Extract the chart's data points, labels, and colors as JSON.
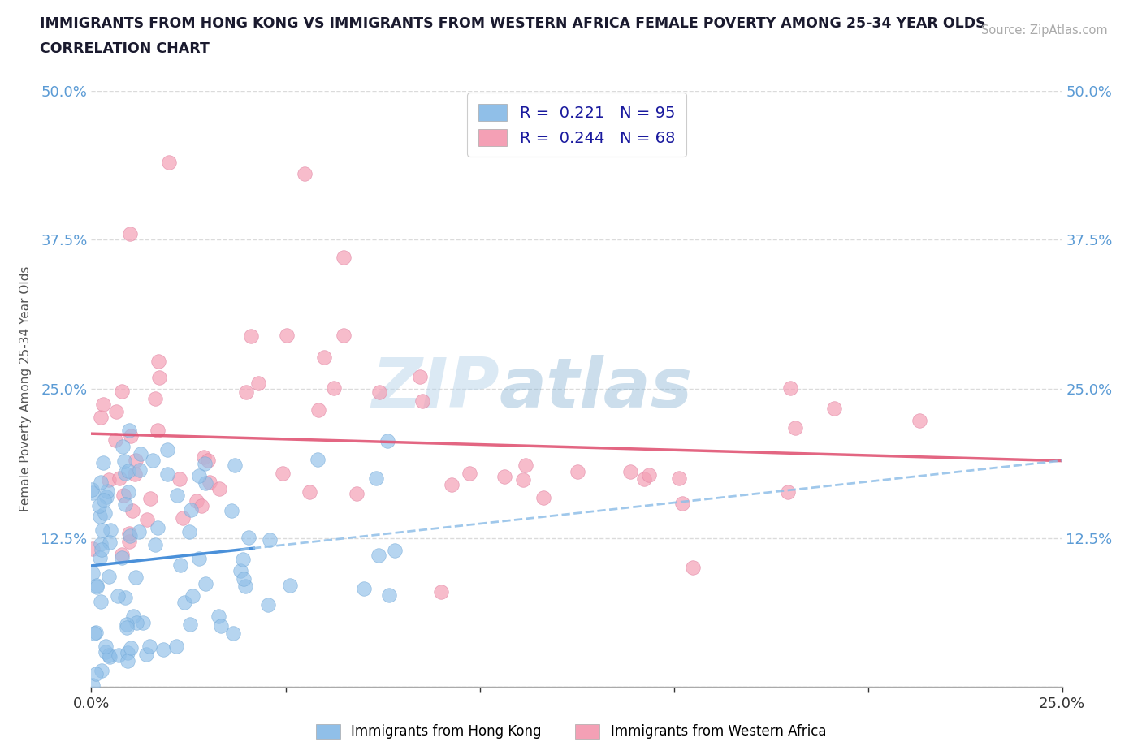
{
  "title_line1": "IMMIGRANTS FROM HONG KONG VS IMMIGRANTS FROM WESTERN AFRICA FEMALE POVERTY AMONG 25-34 YEAR OLDS",
  "title_line2": "CORRELATION CHART",
  "source_text": "Source: ZipAtlas.com",
  "ylabel": "Female Poverty Among 25-34 Year Olds",
  "xlim": [
    0.0,
    0.25
  ],
  "ylim": [
    0.0,
    0.5
  ],
  "hk_color": "#90bfe8",
  "wa_color": "#f4a0b5",
  "hk_R": 0.221,
  "hk_N": 95,
  "wa_R": 0.244,
  "wa_N": 68,
  "trend_hk_solid_color": "#4a90d9",
  "trend_hk_dash_color": "#90bfe8",
  "trend_wa_color": "#e05575",
  "watermark_color": "#c8dff0",
  "background_color": "#ffffff",
  "grid_color": "#cccccc",
  "tick_label_color": "#5b9bd5",
  "title_color": "#1a1a2e",
  "source_color": "#aaaaaa"
}
